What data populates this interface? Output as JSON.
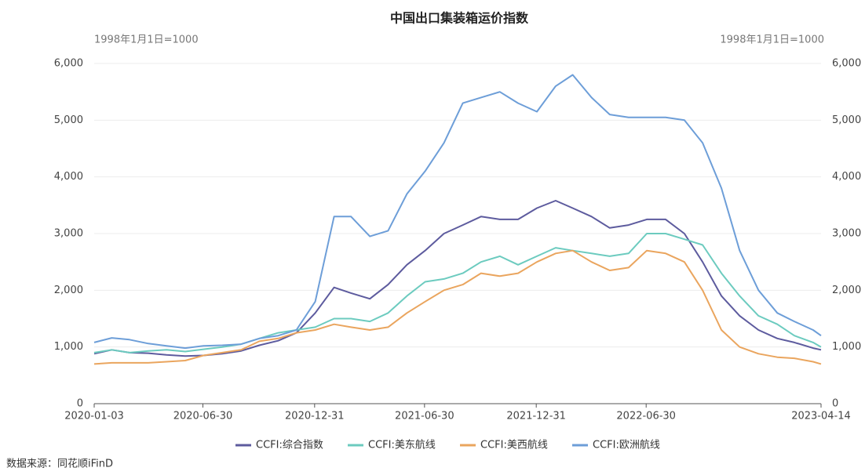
{
  "chart_data": {
    "type": "line",
    "title": "中国出口集装箱运价指数",
    "y_unit": "1998年1月1日=1000",
    "y2_unit": "1998年1月1日=1000",
    "source": "数据来源：同花顺iFinD",
    "x": [
      "2020-01-03",
      "2020-02-01",
      "2020-03-01",
      "2020-04-01",
      "2020-05-01",
      "2020-06-01",
      "2020-07-01",
      "2020-08-01",
      "2020-09-01",
      "2020-10-01",
      "2020-11-01",
      "2020-12-01",
      "2021-01-01",
      "2021-02-01",
      "2021-03-01",
      "2021-04-01",
      "2021-05-01",
      "2021-06-01",
      "2021-07-01",
      "2021-08-01",
      "2021-09-01",
      "2021-10-01",
      "2021-11-01",
      "2021-12-01",
      "2022-01-01",
      "2022-02-01",
      "2022-03-01",
      "2022-04-01",
      "2022-05-01",
      "2022-06-01",
      "2022-07-01",
      "2022-08-01",
      "2022-09-01",
      "2022-10-01",
      "2022-11-01",
      "2022-12-01",
      "2023-01-01",
      "2023-02-01",
      "2023-03-01",
      "2023-04-01",
      "2023-04-14"
    ],
    "xlim": [
      "2020-01-03",
      "2023-04-14"
    ],
    "xticks": [
      "2020-01-03",
      "2020-06-30",
      "2020-12-31",
      "2021-06-30",
      "2021-12-31",
      "2022-06-30",
      "2023-04-14"
    ],
    "ylim": [
      0,
      6000
    ],
    "yticks": [
      0,
      {
        "value": 1000,
        "label": "1,000"
      },
      {
        "value": 2000,
        "label": "2,000"
      },
      {
        "value": 3000,
        "label": "3,000"
      },
      {
        "value": 4000,
        "label": "4,000"
      },
      {
        "value": 5000,
        "label": "5,000"
      },
      {
        "value": 6000,
        "label": "6,000"
      }
    ],
    "y2lim": [
      0,
      6000
    ],
    "y2ticks": [
      0,
      {
        "value": 1000,
        "label": "1,000"
      },
      {
        "value": 2000,
        "label": "2,000"
      },
      {
        "value": 3000,
        "label": "3,000"
      },
      {
        "value": 4000,
        "label": "4,000"
      },
      {
        "value": 5000,
        "label": "5,000"
      },
      {
        "value": 6000,
        "label": "6,000"
      }
    ],
    "grid": true,
    "legend": "bottom",
    "series": [
      {
        "name": "CCFI:综合指数",
        "color": "#5d5b9e",
        "values": [
          880,
          950,
          900,
          890,
          860,
          840,
          850,
          880,
          930,
          1030,
          1110,
          1250,
          1600,
          2050,
          1950,
          1850,
          2100,
          2450,
          2700,
          3000,
          3150,
          3300,
          3250,
          3250,
          3450,
          3580,
          3450,
          3300,
          3100,
          3150,
          3250,
          3250,
          3000,
          2500,
          1900,
          1550,
          1300,
          1150,
          1080,
          980,
          950
        ]
      },
      {
        "name": "CCFI:美东航线",
        "color": "#6ccbbf",
        "values": [
          900,
          950,
          900,
          930,
          950,
          920,
          960,
          1000,
          1050,
          1150,
          1250,
          1300,
          1350,
          1500,
          1500,
          1450,
          1600,
          1900,
          2150,
          2200,
          2300,
          2500,
          2600,
          2450,
          2600,
          2750,
          2700,
          2650,
          2600,
          2650,
          3000,
          3000,
          2900,
          2800,
          2300,
          1900,
          1550,
          1400,
          1200,
          1080,
          1000
        ]
      },
      {
        "name": "CCFI:美西航线",
        "color": "#eaa55e",
        "values": [
          700,
          720,
          720,
          720,
          740,
          760,
          850,
          900,
          950,
          1100,
          1150,
          1250,
          1300,
          1400,
          1350,
          1300,
          1350,
          1600,
          1800,
          2000,
          2100,
          2300,
          2250,
          2300,
          2500,
          2650,
          2700,
          2500,
          2350,
          2400,
          2700,
          2650,
          2500,
          2000,
          1300,
          1000,
          880,
          820,
          800,
          740,
          700
        ]
      },
      {
        "name": "CCFI:欧洲航线",
        "color": "#6d9ed8",
        "values": [
          1080,
          1160,
          1130,
          1060,
          1020,
          980,
          1020,
          1030,
          1050,
          1150,
          1200,
          1300,
          1800,
          3300,
          3300,
          2950,
          3050,
          3700,
          4100,
          4600,
          5300,
          5400,
          5500,
          5300,
          5150,
          5600,
          5800,
          5400,
          5100,
          5050,
          5050,
          5050,
          5000,
          4600,
          3800,
          2700,
          2000,
          1600,
          1450,
          1300,
          1200
        ]
      }
    ]
  }
}
